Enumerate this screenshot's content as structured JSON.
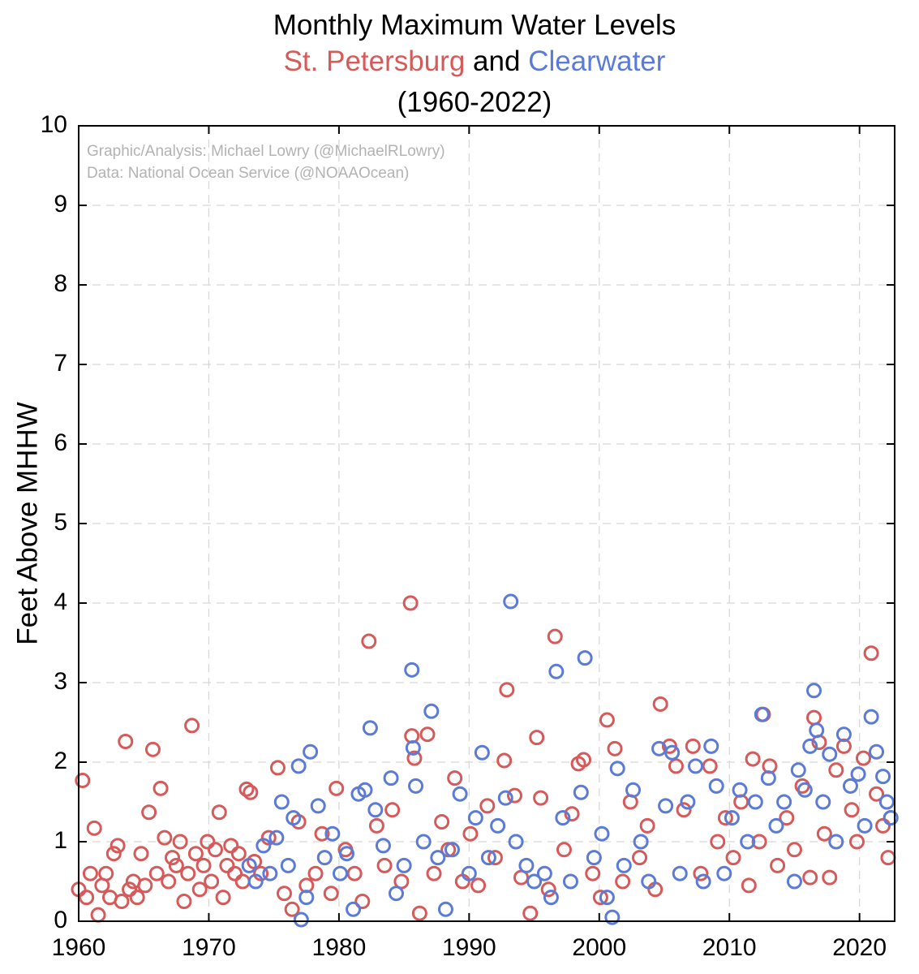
{
  "chart_data": {
    "type": "scatter",
    "title": "Monthly Maximum Water Levels",
    "subtitle_joiner": "and",
    "subtitle": "(1960-2022)",
    "ylabel": "Feet Above MHHW",
    "annotations": [
      "Graphic/Analysis: Michael Lowry (@MichaelRLowry)",
      "Data: National Ocean Service (@NOAAOcean)"
    ],
    "xlim": [
      1960,
      2022.7
    ],
    "ylim": [
      0,
      10
    ],
    "xticks": [
      1960,
      1970,
      1980,
      1990,
      2000,
      2010,
      2020
    ],
    "yticks": [
      0,
      1,
      2,
      3,
      4,
      5,
      6,
      7,
      8,
      9,
      10
    ],
    "grid": true,
    "series": [
      {
        "name": "St. Petersburg",
        "color": "#d65a5a",
        "x": [
          1960.0,
          1960.3,
          1960.6,
          1960.9,
          1961.2,
          1961.5,
          1961.8,
          1962.1,
          1962.4,
          1962.7,
          1963.0,
          1963.3,
          1963.6,
          1963.9,
          1964.2,
          1964.5,
          1964.8,
          1965.1,
          1965.4,
          1965.7,
          1966.0,
          1966.3,
          1966.6,
          1966.9,
          1967.2,
          1967.5,
          1967.8,
          1968.1,
          1968.4,
          1968.7,
          1969.0,
          1969.3,
          1969.6,
          1969.9,
          1970.2,
          1970.5,
          1970.8,
          1971.1,
          1971.4,
          1971.7,
          1972.0,
          1972.3,
          1972.6,
          1972.9,
          1973.2,
          1973.5,
          1974.0,
          1974.6,
          1975.3,
          1975.8,
          1976.4,
          1976.9,
          1977.5,
          1978.2,
          1978.7,
          1979.4,
          1979.8,
          1980.5,
          1981.2,
          1981.8,
          1982.3,
          1982.9,
          1983.5,
          1984.1,
          1984.8,
          1985.5,
          1985.6,
          1985.8,
          1986.2,
          1986.8,
          1987.3,
          1987.9,
          1988.4,
          1988.9,
          1989.5,
          1990.1,
          1990.7,
          1991.4,
          1992.0,
          1992.7,
          1992.9,
          1993.5,
          1994.0,
          1994.7,
          1995.2,
          1995.5,
          1996.1,
          1996.6,
          1997.3,
          1997.9,
          1998.4,
          1998.8,
          1999.5,
          2000.1,
          2000.6,
          2001.2,
          2001.8,
          2002.4,
          2003.1,
          2003.7,
          2004.3,
          2004.7,
          2005.4,
          2005.9,
          2006.5,
          2007.2,
          2007.8,
          2008.5,
          2009.1,
          2009.7,
          2010.3,
          2010.9,
          2011.5,
          2011.8,
          2012.3,
          2012.6,
          2013.1,
          2013.7,
          2014.4,
          2015.0,
          2015.6,
          2016.2,
          2016.5,
          2016.9,
          2017.3,
          2017.7,
          2018.2,
          2018.8,
          2019.4,
          2019.8,
          2020.3,
          2020.9,
          2021.3,
          2021.8,
          2022.2,
          2022.4
        ],
        "values": [
          0.4,
          1.77,
          0.3,
          0.6,
          1.17,
          0.08,
          0.45,
          0.6,
          0.3,
          0.85,
          0.95,
          0.25,
          2.26,
          0.4,
          0.5,
          0.3,
          0.85,
          0.45,
          1.37,
          2.16,
          0.6,
          1.67,
          1.05,
          0.5,
          0.8,
          0.7,
          1.0,
          0.25,
          0.6,
          2.46,
          0.85,
          0.4,
          0.7,
          1.0,
          0.5,
          0.9,
          1.37,
          0.3,
          0.7,
          0.95,
          0.6,
          0.85,
          0.5,
          1.66,
          1.62,
          0.75,
          0.6,
          1.05,
          1.93,
          0.35,
          0.15,
          1.25,
          0.45,
          0.6,
          1.1,
          0.35,
          1.67,
          0.9,
          0.6,
          0.25,
          3.52,
          1.2,
          0.7,
          1.4,
          0.5,
          4.0,
          2.33,
          2.05,
          0.1,
          2.35,
          0.6,
          1.25,
          0.9,
          1.8,
          0.5,
          1.1,
          0.45,
          1.45,
          0.8,
          2.02,
          2.91,
          1.58,
          0.55,
          0.1,
          2.31,
          1.55,
          0.4,
          3.58,
          0.9,
          1.35,
          1.98,
          2.03,
          0.6,
          0.3,
          2.53,
          2.17,
          0.5,
          1.5,
          0.8,
          1.2,
          0.4,
          2.73,
          2.2,
          1.95,
          1.4,
          2.2,
          0.6,
          1.95,
          1.0,
          1.3,
          0.8,
          1.5,
          0.45,
          2.04,
          1.0,
          2.6,
          1.95,
          0.7,
          1.3,
          0.9,
          1.7,
          0.55,
          2.56,
          2.25,
          1.1,
          0.55,
          1.9,
          2.2,
          1.4,
          1.0,
          2.05,
          3.37,
          1.6,
          1.2,
          0.8,
          1.3
        ]
      },
      {
        "name": "Clearwater",
        "color": "#5b7bd6",
        "x": [
          1973.1,
          1973.6,
          1974.2,
          1974.7,
          1975.2,
          1975.6,
          1976.1,
          1976.5,
          1976.9,
          1977.1,
          1977.5,
          1977.8,
          1978.4,
          1978.9,
          1979.5,
          1980.1,
          1980.6,
          1981.1,
          1981.5,
          1982.0,
          1982.4,
          1982.8,
          1983.4,
          1984.0,
          1984.4,
          1985.0,
          1985.6,
          1985.7,
          1985.9,
          1986.5,
          1987.1,
          1987.6,
          1988.2,
          1988.7,
          1989.3,
          1990.0,
          1990.5,
          1991.0,
          1991.5,
          1992.2,
          1992.8,
          1993.2,
          1993.6,
          1994.4,
          1995.0,
          1995.8,
          1996.3,
          1996.7,
          1997.2,
          1997.8,
          1998.6,
          1998.9,
          1999.6,
          2000.2,
          2000.6,
          2001.0,
          2001.4,
          2001.9,
          2002.6,
          2003.2,
          2003.8,
          2004.6,
          2005.1,
          2005.6,
          2006.2,
          2006.8,
          2007.4,
          2008.0,
          2008.6,
          2009.0,
          2009.6,
          2010.2,
          2010.8,
          2011.4,
          2012.0,
          2012.5,
          2013.0,
          2013.6,
          2014.2,
          2015.0,
          2015.3,
          2015.8,
          2016.2,
          2016.5,
          2016.7,
          2017.2,
          2017.7,
          2018.2,
          2018.8,
          2019.3,
          2019.9,
          2020.4,
          2020.9,
          2021.3,
          2021.8,
          2022.1,
          2022.4
        ],
        "values": [
          0.7,
          0.5,
          0.95,
          0.6,
          1.05,
          1.5,
          0.7,
          1.3,
          1.95,
          0.02,
          0.3,
          2.13,
          1.45,
          0.8,
          1.1,
          0.6,
          0.85,
          0.15,
          1.6,
          1.65,
          2.43,
          1.4,
          0.95,
          1.8,
          0.35,
          0.7,
          3.16,
          2.18,
          1.7,
          1.0,
          2.64,
          0.8,
          0.15,
          0.9,
          1.6,
          0.6,
          1.3,
          2.12,
          0.8,
          1.2,
          1.55,
          4.02,
          1.0,
          0.7,
          0.5,
          0.6,
          0.3,
          3.14,
          1.3,
          0.5,
          1.62,
          3.31,
          0.8,
          1.1,
          0.3,
          0.05,
          1.92,
          0.7,
          1.65,
          1.0,
          0.5,
          2.17,
          1.45,
          2.12,
          0.6,
          1.5,
          1.95,
          0.5,
          2.2,
          1.7,
          0.6,
          1.3,
          1.65,
          1.0,
          1.5,
          2.6,
          1.8,
          1.2,
          1.5,
          0.5,
          1.9,
          1.65,
          2.2,
          2.9,
          2.4,
          1.5,
          2.1,
          1.0,
          2.35,
          1.7,
          1.85,
          1.2,
          2.57,
          2.13,
          1.82,
          1.5,
          1.3
        ]
      }
    ]
  }
}
